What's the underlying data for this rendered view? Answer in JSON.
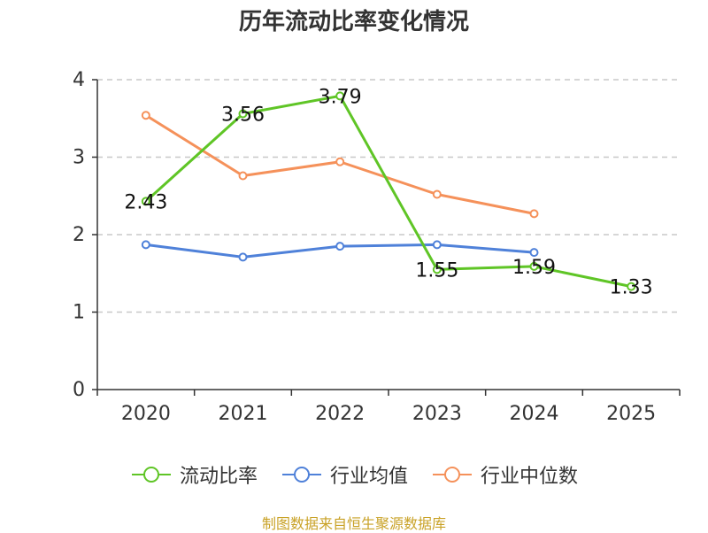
{
  "chart_data": {
    "type": "line",
    "title": "历年流动比率变化情况",
    "categories": [
      "2020",
      "2021",
      "2022",
      "2023",
      "2024",
      "2025"
    ],
    "yticks": [
      "0",
      "1",
      "2",
      "3",
      "4"
    ],
    "ylim": [
      0,
      4
    ],
    "grid": true,
    "legend_position": "bottom-center",
    "series": [
      {
        "name": "流动比率",
        "color": "#5fc526",
        "values": [
          2.43,
          3.56,
          3.79,
          1.55,
          1.59,
          1.33
        ],
        "labels": [
          "2.43",
          "3.56",
          "3.79",
          "1.55",
          "1.59",
          "1.33"
        ]
      },
      {
        "name": "行业均值",
        "color": "#4f81d9",
        "values": [
          1.87,
          1.71,
          1.85,
          1.87,
          1.77,
          null
        ]
      },
      {
        "name": "行业中位数",
        "color": "#f5915a",
        "values": [
          3.54,
          2.76,
          2.94,
          2.52,
          2.27,
          null
        ]
      }
    ],
    "source_note": "制图数据来自恒生聚源数据库"
  }
}
